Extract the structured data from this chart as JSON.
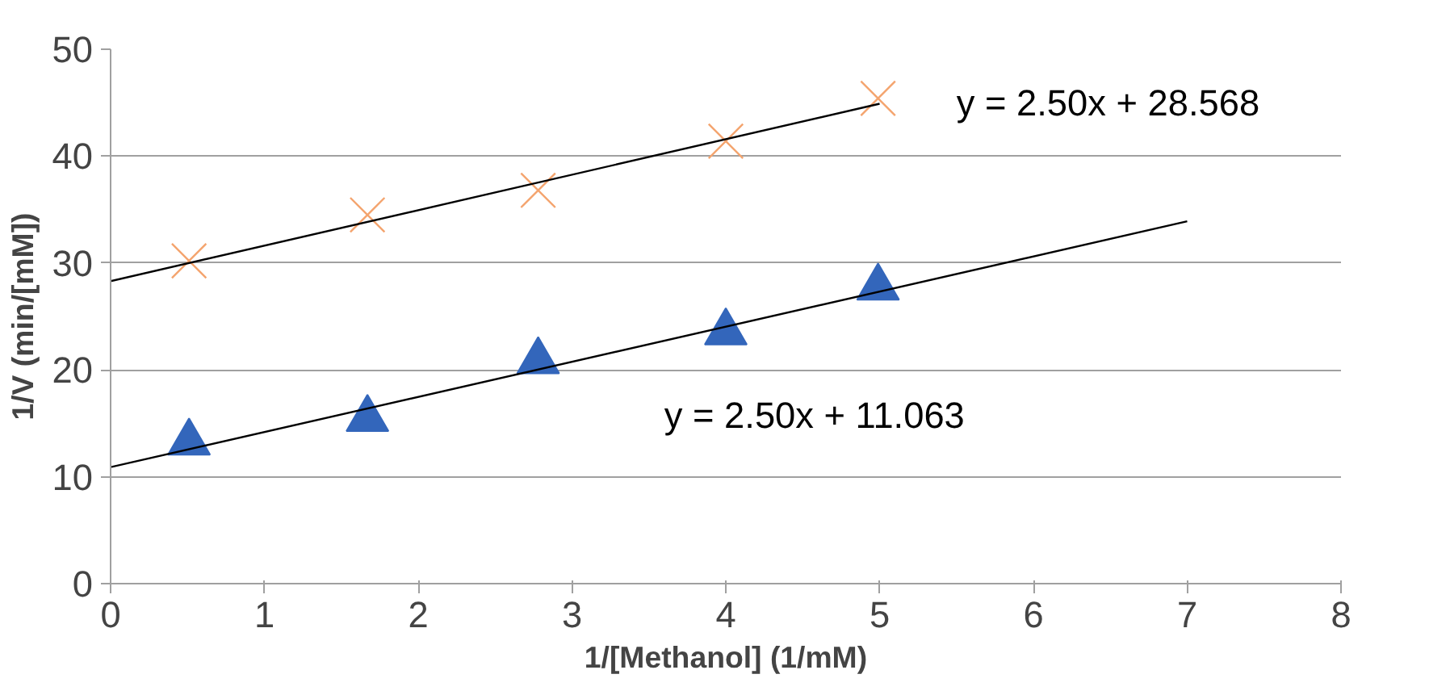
{
  "chart_data": {
    "type": "scatter",
    "xlabel": "1/[Methanol] (1/mM)",
    "ylabel": "1/V (min/[mM])",
    "xlim": [
      0,
      8
    ],
    "xticks": [
      0,
      1,
      2,
      3,
      4,
      5,
      6,
      7,
      8
    ],
    "ylim": [
      0,
      50
    ],
    "yticks": [
      0,
      10,
      20,
      30,
      40,
      50
    ],
    "grid": "y",
    "series": [
      {
        "marker": "cross",
        "color": "#f4a46e",
        "x": [
          0.51,
          1.67,
          2.78,
          4.0,
          4.99
        ],
        "values": [
          30.2,
          34.5,
          36.8,
          41.4,
          45.4
        ]
      },
      {
        "marker": "triangle",
        "color": "#3366bb",
        "x": [
          0.51,
          1.67,
          2.78,
          4.0,
          4.99
        ],
        "values": [
          13.2,
          15.4,
          20.8,
          23.5,
          27.7
        ]
      },
      {
        "type": "line",
        "color": "#000000",
        "x": [
          0,
          5
        ],
        "values": [
          28.3,
          44.9
        ]
      },
      {
        "type": "line",
        "color": "#000000",
        "x": [
          0,
          7
        ],
        "values": [
          10.9,
          33.9
        ]
      }
    ],
    "annotations": [
      "y = 2.50x + 28.568",
      "y = 2.50x + 11.063"
    ]
  }
}
